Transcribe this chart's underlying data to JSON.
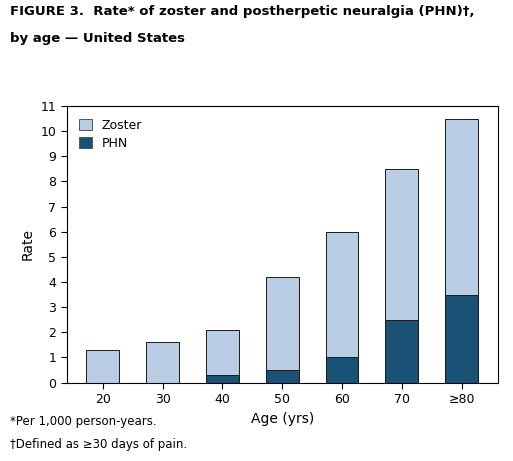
{
  "categories": [
    "20",
    "30",
    "40",
    "50",
    "60",
    "70",
    "≥80"
  ],
  "zoster_total": [
    1.3,
    1.6,
    2.1,
    4.2,
    6.0,
    8.5,
    10.5
  ],
  "phn_values": [
    0.0,
    0.0,
    0.3,
    0.5,
    1.0,
    2.5,
    3.5
  ],
  "zoster_color": "#b8cce4",
  "phn_color": "#1a5276",
  "bar_edge_color": "#1a1a1a",
  "ylim": [
    0,
    11
  ],
  "yticks": [
    0,
    1,
    2,
    3,
    4,
    5,
    6,
    7,
    8,
    9,
    10,
    11
  ],
  "ylabel": "Rate",
  "xlabel": "Age (yrs)",
  "title_line1": "FIGURE 3.  Rate* of zoster and postherpetic neuralgia (PHN)†,",
  "title_line2": "by age — United States",
  "legend_zoster": "Zoster",
  "legend_phn": "PHN",
  "footnote1": "*Per 1,000 person-years.",
  "footnote2": "†Defined as ≥30 days of pain.",
  "bar_width": 0.55,
  "figsize": [
    5.13,
    4.61
  ],
  "dpi": 100
}
